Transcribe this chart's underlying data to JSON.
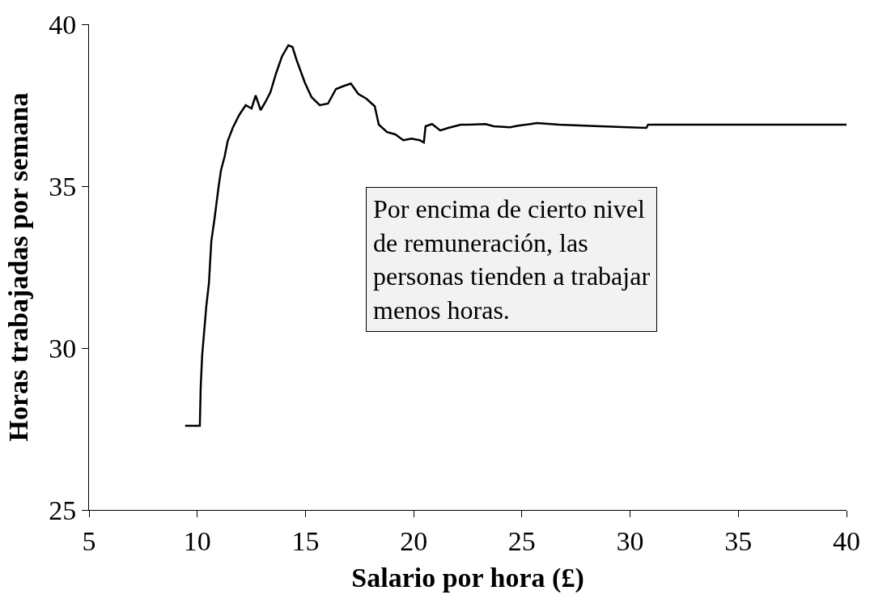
{
  "chart_data": {
    "type": "line",
    "xlabel": "Salario por hora (£)",
    "ylabel": "Horas trabajadas por semana",
    "xlim": [
      5,
      40
    ],
    "ylim": [
      25,
      40
    ],
    "xticks": [
      5,
      10,
      15,
      20,
      25,
      30,
      35,
      40
    ],
    "yticks": [
      25,
      30,
      35,
      40
    ],
    "marker": "none",
    "line_style": "solid",
    "annotations": [
      "Por encima de cierto nivel de remuneración, las personas tienden a trabajar menos horas."
    ],
    "series": [
      {
        "color": "#000000",
        "x": [
          9.44,
          10.12,
          10.16,
          10.23,
          10.42,
          10.54,
          10.65,
          10.8,
          10.99,
          11.1,
          11.26,
          11.41,
          11.64,
          11.94,
          12.24,
          12.51,
          12.7,
          12.93,
          13.15,
          13.38,
          13.65,
          13.91,
          14.21,
          14.4,
          14.59,
          14.97,
          15.28,
          15.66,
          16.04,
          16.41,
          16.79,
          17.1,
          17.44,
          17.82,
          18.2,
          18.39,
          18.77,
          19.15,
          19.52,
          19.9,
          20.28,
          20.47,
          20.55,
          20.85,
          21.23,
          21.6,
          22.18,
          22.56,
          23.32,
          23.7,
          24.45,
          24.83,
          25.4,
          25.7,
          26.73,
          28.63,
          30.75,
          30.83,
          40
        ],
        "values": [
          27.6,
          27.6,
          28.8,
          29.8,
          31.3,
          32.0,
          33.3,
          34.0,
          35.0,
          35.5,
          35.9,
          36.4,
          36.8,
          37.2,
          37.5,
          37.4,
          37.8,
          37.35,
          37.6,
          37.9,
          38.5,
          39.0,
          39.35,
          39.3,
          38.9,
          38.2,
          37.75,
          37.5,
          37.55,
          38.0,
          38.1,
          38.17,
          37.85,
          37.7,
          37.47,
          36.9,
          36.67,
          36.6,
          36.42,
          36.47,
          36.42,
          36.35,
          36.85,
          36.92,
          36.72,
          36.8,
          36.9,
          36.9,
          36.92,
          36.85,
          36.82,
          36.87,
          36.92,
          36.95,
          36.9,
          36.85,
          36.8,
          36.9,
          36.9
        ]
      }
    ]
  }
}
